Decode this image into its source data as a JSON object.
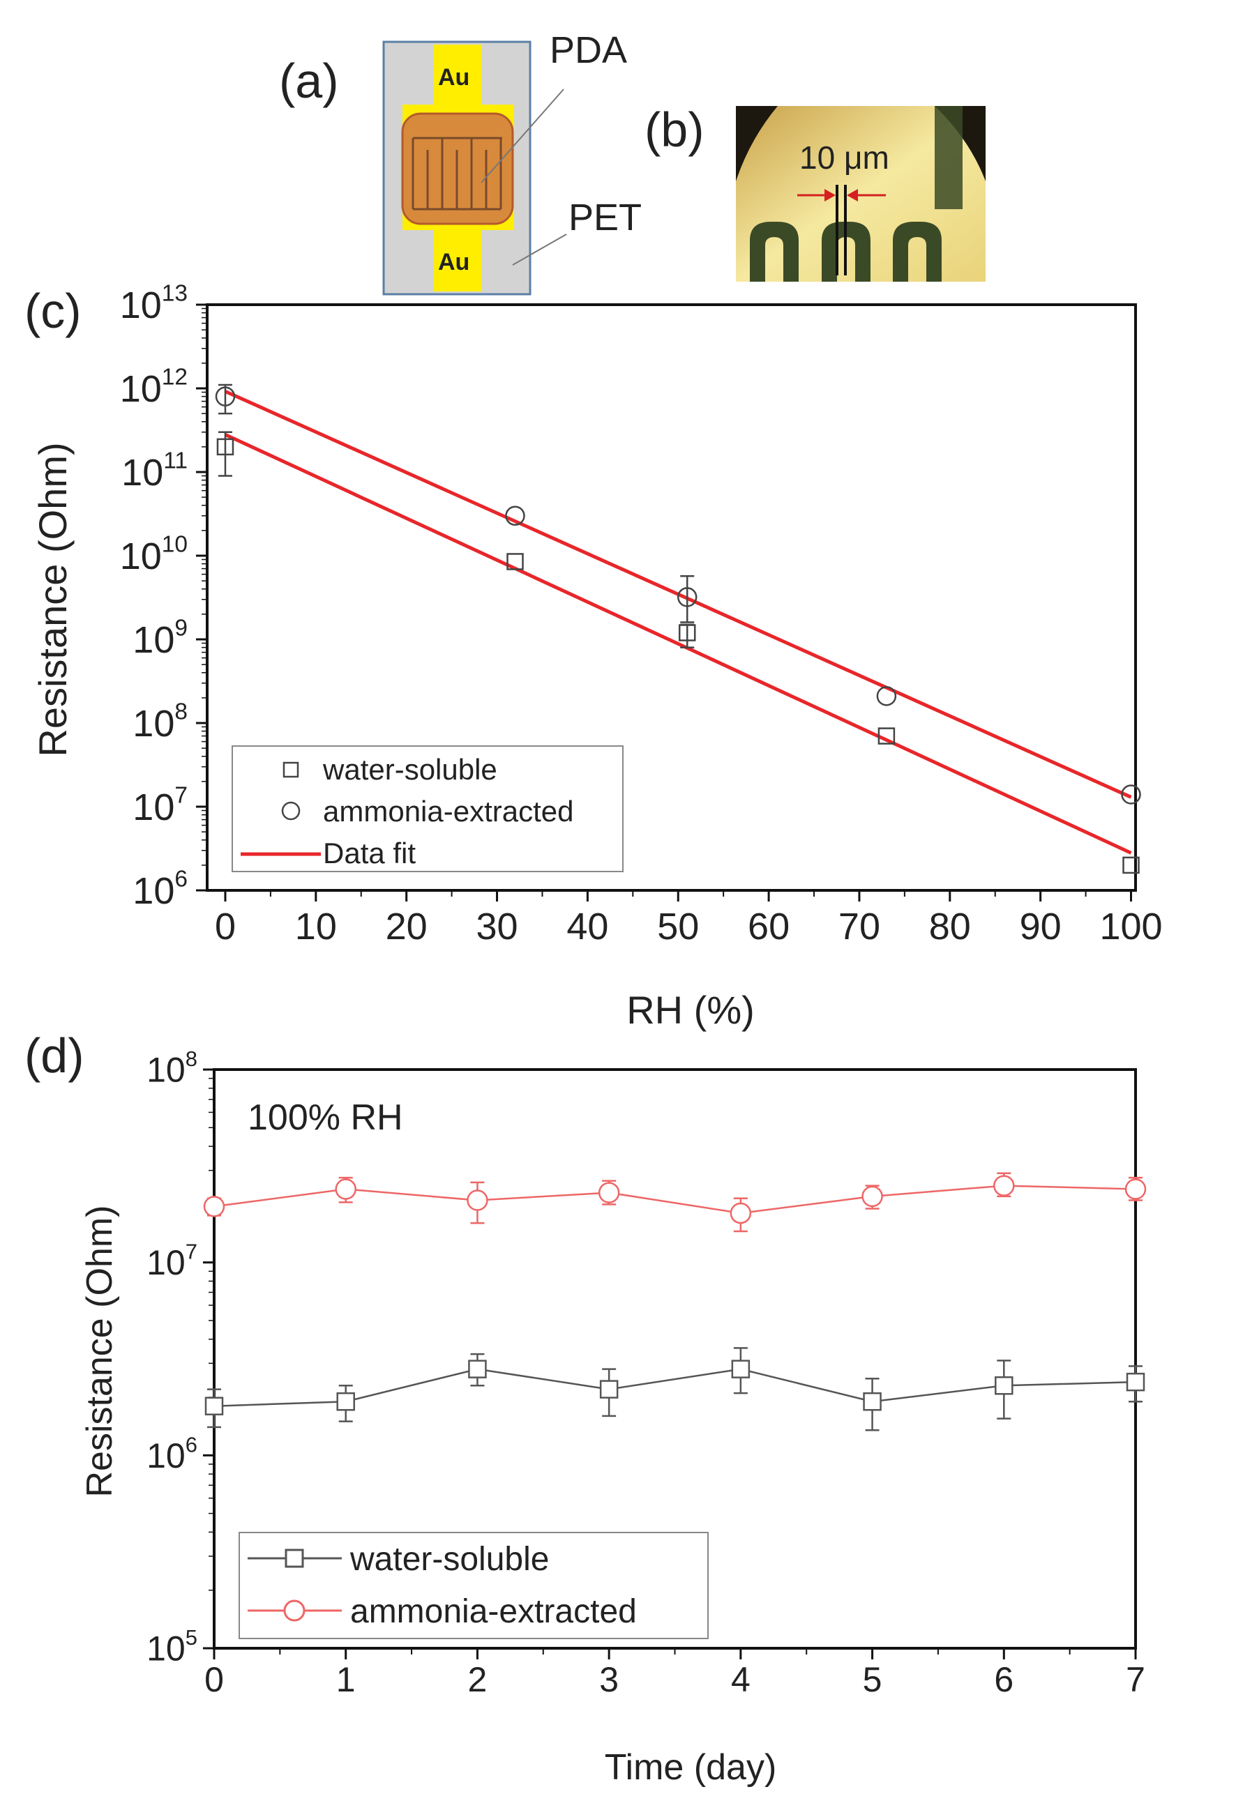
{
  "panel_labels": {
    "a": "(a)",
    "b": "(b)",
    "c": "(c)",
    "d": "(d)"
  },
  "schematic": {
    "top_label": "Au",
    "bottom_label": "Au",
    "pda_label": "PDA",
    "pet_label": "PET"
  },
  "micrograph": {
    "scale_label": "10 μm"
  },
  "colors": {
    "fit": "#e8262a",
    "water_d": "#555555",
    "ammonia_d": "#ee6666",
    "gold": "#ffee00"
  },
  "chart_data": [
    {
      "type": "scatter",
      "panel": "c",
      "xlabel": "RH (%)",
      "ylabel": "Resistance (Ohm)",
      "xlim": [
        -2,
        100.5
      ],
      "xticks": [
        0,
        10,
        20,
        30,
        40,
        50,
        60,
        70,
        80,
        90,
        100
      ],
      "ylim_log10": [
        6,
        13
      ],
      "yticks_log10": [
        6,
        7,
        8,
        9,
        10,
        11,
        12,
        13
      ],
      "series": [
        {
          "name": "water-soluble",
          "marker": "square",
          "x": [
            0,
            32,
            51,
            73,
            100
          ],
          "y": [
            200000000000.0,
            8500000000.0,
            1200000000.0,
            70000000.0,
            2000000.0
          ],
          "err_lo": [
            110000000000.0,
            0,
            400000000.0,
            0,
            0
          ],
          "err_hi": [
            100000000000.0,
            0,
            300000000.0,
            0,
            0
          ]
        },
        {
          "name": "ammonia-extracted",
          "marker": "circle",
          "x": [
            0,
            32,
            51,
            73,
            100
          ],
          "y": [
            800000000000.0,
            30000000000.0,
            3200000000.0,
            210000000.0,
            14000000.0
          ],
          "err_lo": [
            300000000000.0,
            0,
            1600000000.0,
            0,
            0
          ],
          "err_hi": [
            300000000000.0,
            0,
            2500000000.0,
            0,
            0
          ]
        }
      ],
      "fits": [
        {
          "name": "Data fit",
          "x": [
            0,
            100
          ],
          "y": [
            280000000000.0,
            2800000.0
          ]
        },
        {
          "name": "Data fit",
          "x": [
            0,
            100
          ],
          "y": [
            920000000000.0,
            13000000.0
          ]
        }
      ],
      "legend": [
        "water-soluble",
        "ammonia-extracted",
        "Data fit"
      ]
    },
    {
      "type": "line",
      "panel": "d",
      "annotation": "100% RH",
      "xlabel": "Time (day)",
      "ylabel": "Resistance (Ohm)",
      "xlim": [
        0,
        7
      ],
      "xticks": [
        0,
        1,
        2,
        3,
        4,
        5,
        6,
        7
      ],
      "ylim_log10": [
        5,
        8
      ],
      "yticks_log10": [
        5,
        6,
        7,
        8
      ],
      "series": [
        {
          "name": "water-soluble",
          "marker": "square",
          "x": [
            0,
            1,
            2,
            3,
            4,
            5,
            6,
            7
          ],
          "y": [
            1800000.0,
            1900000.0,
            2800000.0,
            2200000.0,
            2800000.0,
            1900000.0,
            2300000.0,
            2400000.0
          ],
          "err_lo": [
            400000.0,
            400000.0,
            500000.0,
            600000.0,
            700000.0,
            550000.0,
            750000.0,
            500000.0
          ],
          "err_hi": [
            400000.0,
            400000.0,
            550000.0,
            600000.0,
            800000.0,
            600000.0,
            800000.0,
            500000.0
          ]
        },
        {
          "name": "ammonia-extracted",
          "marker": "circle",
          "x": [
            0,
            1,
            2,
            3,
            4,
            5,
            6,
            7
          ],
          "y": [
            19500000.0,
            24000000.0,
            21000000.0,
            23000000.0,
            18000000.0,
            22000000.0,
            25000000.0,
            24000000.0
          ],
          "err_lo": [
            2000000.0,
            3500000.0,
            5000000.0,
            3000000.0,
            3500000.0,
            3000000.0,
            3000000.0,
            3000000.0
          ],
          "err_hi": [
            2000000.0,
            3500000.0,
            5000000.0,
            3500000.0,
            3500000.0,
            3000000.0,
            4000000.0,
            3500000.0
          ]
        }
      ],
      "legend": [
        "water-soluble",
        "ammonia-extracted"
      ]
    }
  ]
}
